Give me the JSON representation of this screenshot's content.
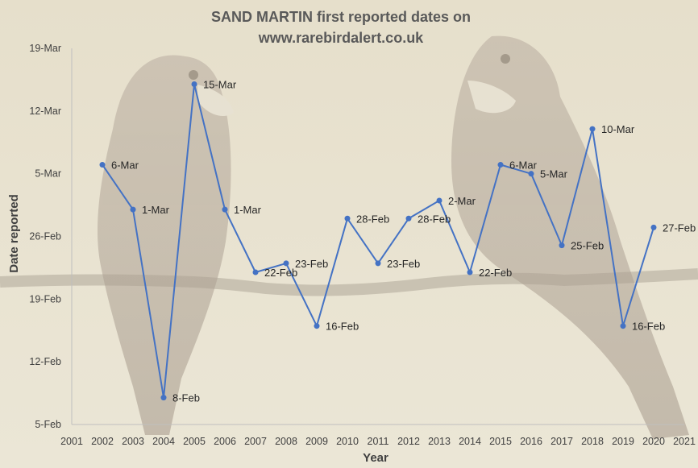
{
  "chart_data": {
    "type": "line",
    "title_line1": "SAND MARTIN first reported dates on",
    "title_line2": "www.rarebirdalert.co.uk",
    "xlabel": "Year",
    "ylabel": "Date reported",
    "x_ticks": [
      "2001",
      "2002",
      "2003",
      "2004",
      "2005",
      "2006",
      "2007",
      "2008",
      "2009",
      "2010",
      "2011",
      "2012",
      "2013",
      "2014",
      "2015",
      "2016",
      "2017",
      "2018",
      "2019",
      "2020",
      "2021"
    ],
    "y_ticks": [
      "19-Mar",
      "12-Mar",
      "5-Mar",
      "26-Feb",
      "19-Feb",
      "12-Feb",
      "5-Feb"
    ],
    "y_tick_values": [
      78,
      71,
      64,
      57,
      50,
      43,
      36
    ],
    "ylim": [
      36,
      78
    ],
    "xlim": [
      2001,
      2021
    ],
    "series": [
      {
        "x": [
          2002,
          2003,
          2004,
          2005,
          2006,
          2007,
          2008,
          2009,
          2010,
          2011,
          2012,
          2013,
          2014,
          2015,
          2016,
          2017,
          2018,
          2019,
          2020
        ],
        "values": [
          65,
          60,
          39,
          74,
          60,
          53,
          54,
          47,
          59,
          54,
          59,
          61,
          53,
          65,
          64,
          56,
          69,
          47,
          58
        ],
        "labels": [
          "6-Mar",
          "1-Mar",
          "8-Feb",
          "15-Mar",
          "1-Mar",
          "22-Feb",
          "23-Feb",
          "16-Feb",
          "28-Feb",
          "23-Feb",
          "28-Feb",
          "2-Mar",
          "22-Feb",
          "6-Mar",
          "5-Mar",
          "25-Feb",
          "10-Mar",
          "16-Feb",
          "27-Feb"
        ]
      }
    ],
    "line_color": "#4472c4",
    "grid": false
  }
}
